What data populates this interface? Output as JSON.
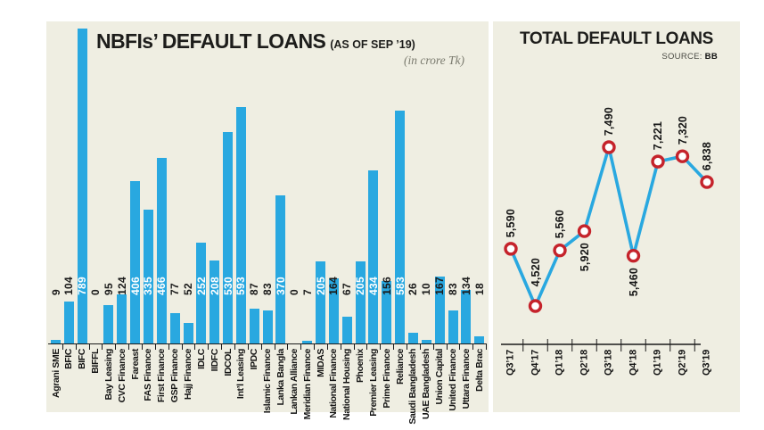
{
  "page": {
    "panel_color": "#efeee2",
    "accent_blue": "#29a8e0",
    "marker_red": "#c5232b"
  },
  "left_chart": {
    "title": "NBFIs’ DEFAULT LOANS",
    "title_suffix": "(AS OF SEP ’19)",
    "unit_note": "(in crore Tk)"
  },
  "right_chart": {
    "title": "TOTAL DEFAULT LOANS",
    "source_label": "SOURCE:",
    "source_value": "BB"
  },
  "chart_data": [
    {
      "type": "bar",
      "title": "NBFIs' DEFAULT LOANS (AS OF SEP '19)",
      "unit": "in crore Tk",
      "categories": [
        "Agrani SME",
        "BFIC",
        "BIFC",
        "BIFFL",
        "Bay Leasing",
        "CVC Finance",
        "Fareast",
        "FAS Finance",
        "First Finance",
        "GSP Finance",
        "Hajj Finance",
        "IDLC",
        "IIDFC",
        "IDCOL",
        "Int’l Leasing",
        "IPDC",
        "Islamic Finance",
        "Lanka Bangla",
        "Lankan Alliance",
        "Meridian Finance",
        "MIDAS",
        "National Finance",
        "National Housing",
        "Phoenix",
        "Premier Leasing",
        "Prime Finance",
        "Reliance",
        "Saudi Bangladesh",
        "UAE Bangladesh",
        "Union Capital",
        "United Finance",
        "Uttara Finance",
        "Delta Brac"
      ],
      "values": [
        9,
        104,
        789,
        0,
        95,
        124,
        406,
        335,
        466,
        77,
        52,
        252,
        208,
        530,
        593,
        87,
        83,
        370,
        0,
        7,
        205,
        164,
        67,
        205,
        434,
        156,
        583,
        26,
        10,
        167,
        83,
        134,
        18
      ],
      "bar_color": "#29a8e0",
      "ylim": [
        0,
        789
      ],
      "grid": false,
      "value_labels_inside_bar_threshold": 200
    },
    {
      "type": "line",
      "title": "TOTAL DEFAULT LOANS",
      "source": "BB",
      "x": [
        "Q3’17",
        "Q4’17",
        "Q1’18",
        "Q2’18",
        "Q3’18",
        "Q4’18",
        "Q1’19",
        "Q2’19",
        "Q3’19"
      ],
      "values": [
        5590,
        4520,
        5560,
        5920,
        7490,
        5460,
        7221,
        7320,
        6838
      ],
      "point_labels": [
        "5,590",
        "4,520",
        "5,560",
        "5,920",
        "7,490",
        "5,460",
        "7,221",
        "7,320",
        "6,838"
      ],
      "label_side": [
        "above",
        "above",
        "above",
        "below",
        "above",
        "below",
        "above",
        "above",
        "above"
      ],
      "line_color": "#29a8e0",
      "marker_fill": "#ffffff",
      "marker_stroke": "#c5232b",
      "grid": false,
      "ylim": [
        4300,
        7700
      ]
    }
  ]
}
